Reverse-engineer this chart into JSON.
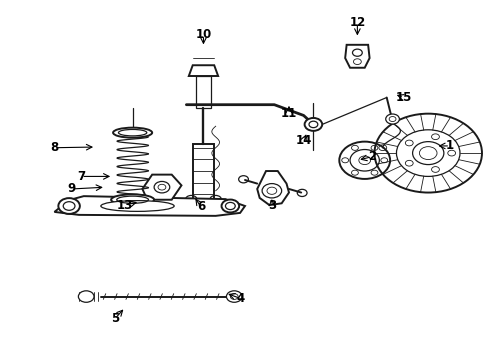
{
  "background_color": "#ffffff",
  "figure_width": 4.9,
  "figure_height": 3.6,
  "dpi": 100,
  "line_color": "#1a1a1a",
  "label_fontsize": 8.5,
  "label_fontweight": "bold",
  "label_positions": {
    "1": [
      0.92,
      0.595,
      0.89,
      0.595
    ],
    "2": [
      0.76,
      0.565,
      0.73,
      0.555
    ],
    "3": [
      0.555,
      0.43,
      0.555,
      0.455
    ],
    "4": [
      0.49,
      0.17,
      0.46,
      0.185
    ],
    "5": [
      0.235,
      0.115,
      0.255,
      0.145
    ],
    "6": [
      0.41,
      0.425,
      0.395,
      0.455
    ],
    "7": [
      0.165,
      0.51,
      0.23,
      0.51
    ],
    "8": [
      0.11,
      0.59,
      0.195,
      0.592
    ],
    "9": [
      0.145,
      0.475,
      0.215,
      0.48
    ],
    "10": [
      0.415,
      0.905,
      0.415,
      0.87
    ],
    "11": [
      0.59,
      0.685,
      0.59,
      0.715
    ],
    "12": [
      0.73,
      0.94,
      0.73,
      0.895
    ],
    "13": [
      0.255,
      0.43,
      0.285,
      0.44
    ],
    "14": [
      0.62,
      0.61,
      0.628,
      0.635
    ],
    "15": [
      0.825,
      0.73,
      0.805,
      0.74
    ]
  }
}
